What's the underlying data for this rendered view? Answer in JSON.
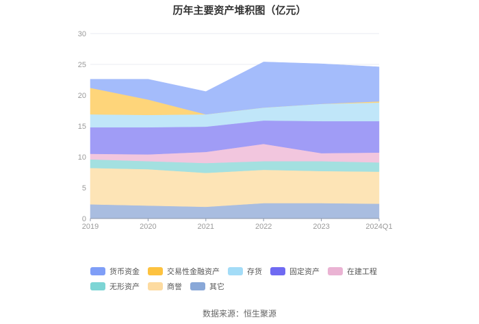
{
  "title": "历年主要资产堆积图（亿元）",
  "source": "数据来源：恒生聚源",
  "chart_data": {
    "type": "area",
    "stacked": true,
    "title": "历年主要资产堆积图（亿元）",
    "xlabel": "",
    "ylabel": "",
    "ylim": [
      0,
      30
    ],
    "yticks": [
      0,
      5,
      10,
      15,
      20,
      25,
      30
    ],
    "grid": true,
    "legend_position": "bottom",
    "categories": [
      "2019",
      "2020",
      "2021",
      "2022",
      "2023",
      "2024Q1"
    ],
    "series": [
      {
        "name": "其它",
        "color": "#a9bde0",
        "values": [
          2.3,
          2.1,
          1.9,
          2.5,
          2.5,
          2.4
        ]
      },
      {
        "name": "商誉",
        "color": "#fde4b6",
        "values": [
          5.9,
          5.9,
          5.5,
          5.4,
          5.2,
          5.2
        ]
      },
      {
        "name": "无形资产",
        "color": "#a3e0e0",
        "values": [
          1.4,
          1.3,
          1.6,
          1.4,
          1.6,
          1.5
        ]
      },
      {
        "name": "在建工程",
        "color": "#f2c6de",
        "values": [
          0.9,
          1.1,
          1.8,
          2.8,
          1.3,
          1.6
        ]
      },
      {
        "name": "固定资产",
        "color": "#a09cf6",
        "values": [
          4.3,
          4.4,
          4.1,
          3.8,
          5.2,
          5.1
        ]
      },
      {
        "name": "存货",
        "color": "#c0e6f9",
        "values": [
          2.1,
          2.0,
          2.0,
          2.1,
          2.8,
          3.0
        ]
      },
      {
        "name": "交易性金融资产",
        "color": "#fed57a",
        "values": [
          4.3,
          2.5,
          0.0,
          0.0,
          0.0,
          0.2
        ]
      },
      {
        "name": "货币资金",
        "color": "#a4bcfb",
        "values": [
          1.4,
          3.3,
          3.7,
          7.4,
          6.5,
          5.6
        ]
      }
    ]
  },
  "legend": [
    {
      "label": "货币资金",
      "color": "#7f9ef7"
    },
    {
      "label": "交易性金融资产",
      "color": "#fdc23f"
    },
    {
      "label": "存货",
      "color": "#a3dcf7"
    },
    {
      "label": "固定资产",
      "color": "#6f6af2"
    },
    {
      "label": "在建工程",
      "color": "#eab3d3"
    },
    {
      "label": "无形资产",
      "color": "#7dd5d5"
    },
    {
      "label": "商誉",
      "color": "#fddba0"
    },
    {
      "label": "其它",
      "color": "#89a8d8"
    }
  ]
}
